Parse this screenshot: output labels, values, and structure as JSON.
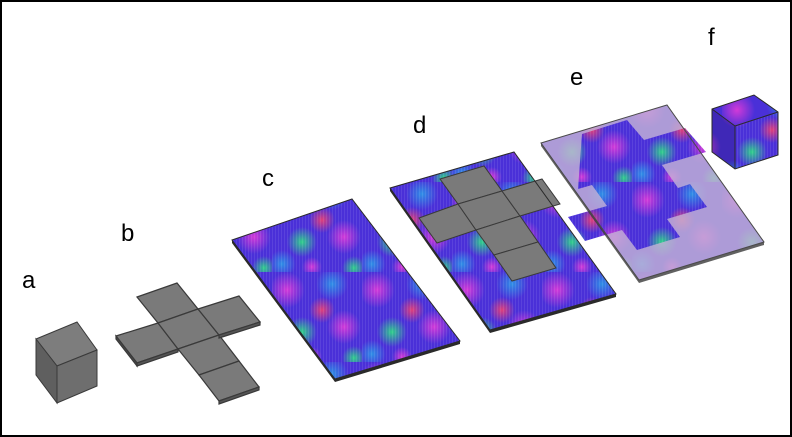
{
  "labels": {
    "a": "a",
    "b": "b",
    "c": "c",
    "d": "d",
    "e": "e",
    "f": "f"
  },
  "colors": {
    "frame_border": "#000000",
    "gray_face_top": "#7d7d7d",
    "gray_face_side": "#5f5f5f",
    "gray_face_front": "#6e6e6e",
    "plate_edge": "#3a3a3a",
    "texture_primary": [
      "#3b2bd6",
      "#6a2ee0",
      "#d23ad8",
      "#2f8fe6",
      "#2fd08a",
      "#e0407a"
    ],
    "translucent_overlay": "#b9a4d0"
  },
  "icons": {
    "cube": "gray-cube",
    "unfolded_net": "cross-shaped-cube-net",
    "textured_plate": "colored-grain-texture-plate"
  }
}
